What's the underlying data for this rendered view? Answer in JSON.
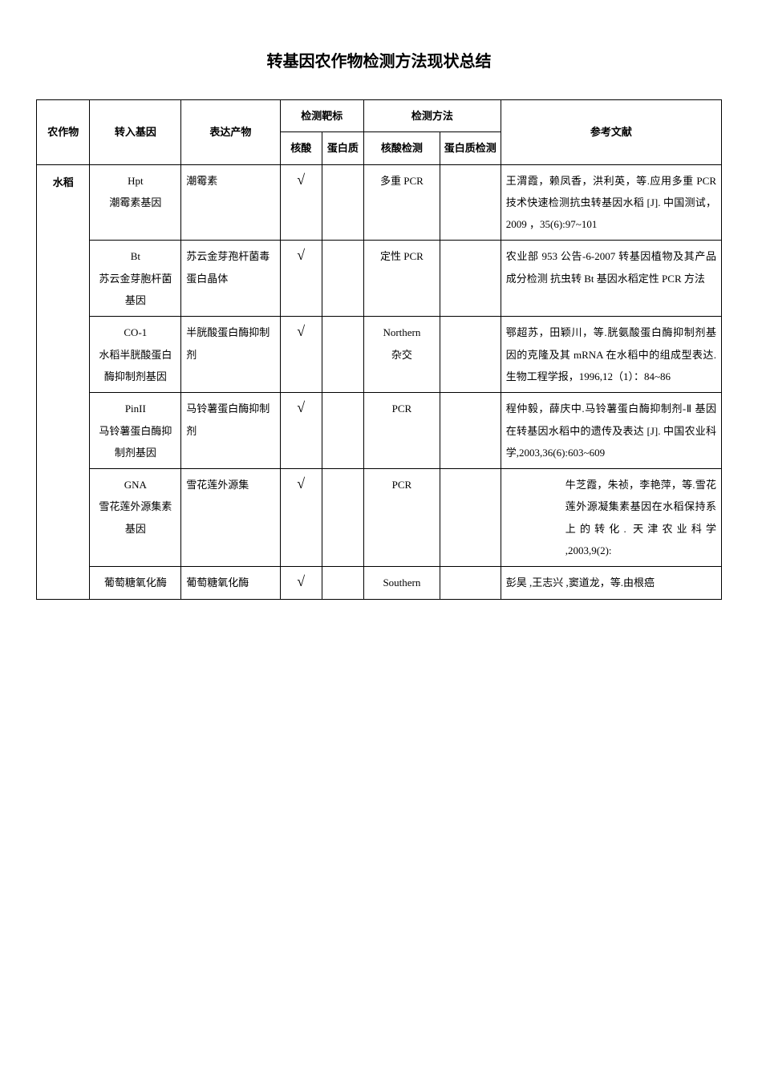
{
  "page": {
    "title": "转基因农作物检测方法现状总结",
    "background_color": "#ffffff",
    "text_color": "#000000",
    "title_fontsize": 20,
    "body_fontsize": 13,
    "line_height": 2.1
  },
  "table": {
    "columns_row1": [
      "农作物",
      "转入基因",
      "表达产物",
      "检测靶标",
      "检测方法",
      "参考文献"
    ],
    "columns_row2": [
      "核酸",
      "蛋白质",
      "核酸检测",
      "蛋白质检测"
    ],
    "col_widths_pct": [
      7,
      12,
      13,
      5.5,
      5.5,
      10,
      8,
      29
    ],
    "border_color": "#000000",
    "border_width_outer": 1.5,
    "border_width_inner": 0.75,
    "check_glyph": "√",
    "rows": [
      {
        "crop": "水稻",
        "crop_rowspan": 6,
        "gene": "Hpt\n潮霉素基因",
        "product": "潮霉素",
        "nuc": "√",
        "prot": "",
        "nuc_det": "多重 PCR",
        "prot_det": "",
        "ref": "王渭霞，赖凤香，洪利英，等.应用多重 PCR 技术快速检测抗虫转基因水稻 [J]. 中国测试， 2009 ，35(6):97~101"
      },
      {
        "gene": "Bt\n苏云金芽胞杆菌基因",
        "product": "苏云金芽孢杆菌毒蛋白晶体",
        "nuc": "√",
        "prot": "",
        "nuc_det": "定性 PCR",
        "prot_det": "",
        "ref": "农业部 953 公告-6-2007 转基因植物及其产品成分检测 抗虫转 Bt 基因水稻定性 PCR 方法"
      },
      {
        "gene": "CO-1\n水稻半胱酸蛋白酶抑制剂基因",
        "product": "半胱酸蛋白酶抑制剂",
        "nuc": "√",
        "prot": "",
        "nuc_det": "Northern\n杂交",
        "prot_det": "",
        "ref": "鄂超苏，田颖川，等.胱氨酸蛋白酶抑制剂基因的克隆及其 mRNA 在水稻中的组成型表达.生物工程学报，1996,12（1）：84~86"
      },
      {
        "gene": "PinII\n马铃薯蛋白酶抑制剂基因",
        "product": "马铃薯蛋白酶抑制剂",
        "nuc": "√",
        "prot": "",
        "nuc_det": "PCR",
        "prot_det": "",
        "ref": "程仲毅，薛庆中.马铃薯蛋白酶抑制剂-Ⅱ 基因在转基因水稻中的遗传及表达 [J]. 中国农业科学,2003,36(6):603~609"
      },
      {
        "gene": "GNA\n雪花莲外源集素基因",
        "product": "雪花莲外源集",
        "nuc": "√",
        "prot": "",
        "nuc_det": "PCR",
        "prot_det": "",
        "ref": "牛芝霞，朱祯，李艳萍，等.雪花莲外源凝集素基因在水稻保持系上的转化. 天津农业科学 ,2003,9(2):",
        "ref_indented": true
      },
      {
        "gene": "葡萄糖氧化酶",
        "product": "葡萄糖氧化酶",
        "nuc": "√",
        "prot": "",
        "nuc_det": "Southern",
        "prot_det": "",
        "ref": "彭昊 ,王志兴 ,窦道龙，等.由根癌",
        "last_row": true
      }
    ]
  }
}
